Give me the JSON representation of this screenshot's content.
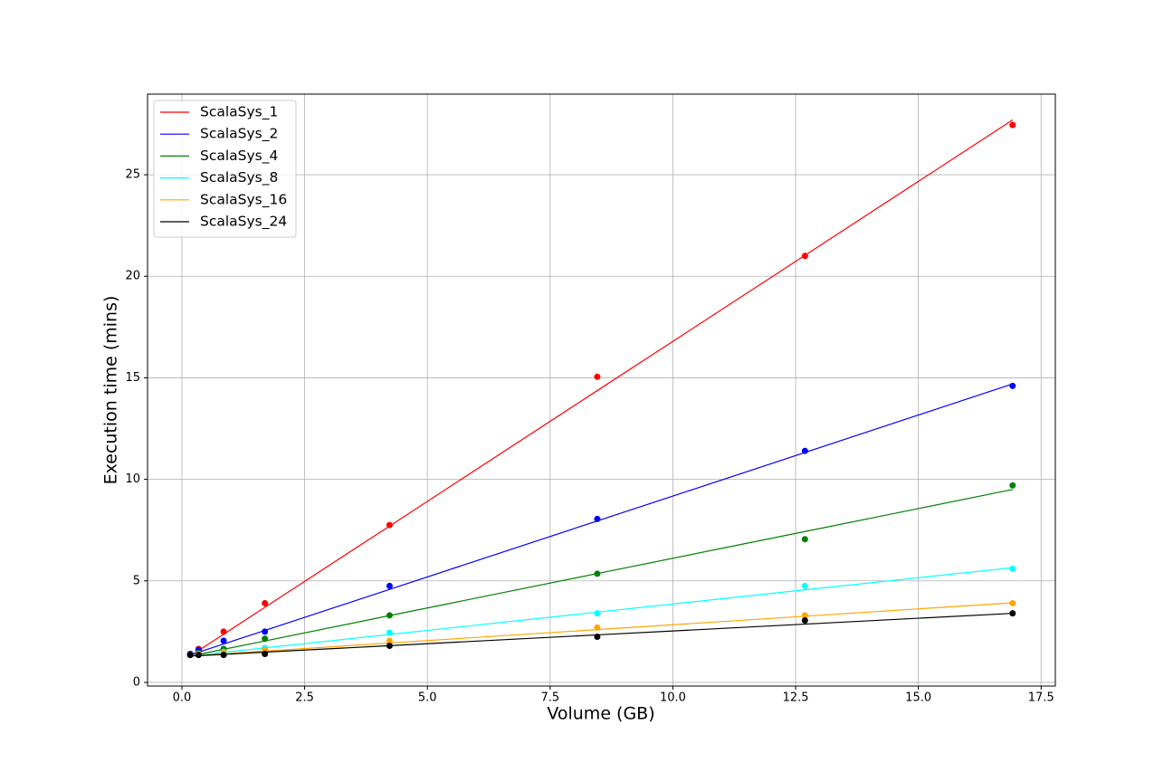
{
  "chart_data": {
    "type": "scatter-fit",
    "xlabel": "Volume (GB)",
    "ylabel": "Execution time (mins)",
    "x": [
      0.17,
      0.34,
      0.85,
      1.69,
      4.23,
      8.46,
      12.69,
      16.92
    ],
    "series": [
      {
        "name": "ScalaSys_1",
        "color": "red",
        "values": [
          1.4,
          1.65,
          2.5,
          3.9,
          7.75,
          15.05,
          21.0,
          27.45
        ],
        "fit": [
          1.3,
          1.57,
          2.37,
          3.7,
          7.7,
          14.37,
          21.03,
          27.7
        ]
      },
      {
        "name": "ScalaSys_2",
        "color": "blue",
        "values": [
          1.4,
          1.6,
          2.05,
          2.5,
          4.75,
          8.05,
          11.4,
          14.6
        ],
        "fit": [
          1.35,
          1.49,
          1.89,
          2.56,
          4.58,
          7.95,
          11.32,
          14.7
        ]
      },
      {
        "name": "ScalaSys_4",
        "color": "green",
        "values": [
          1.35,
          1.45,
          1.65,
          2.15,
          3.3,
          5.35,
          7.05,
          9.7
        ],
        "fit": [
          1.3,
          1.38,
          1.63,
          2.04,
          3.29,
          5.36,
          7.43,
          9.5
        ]
      },
      {
        "name": "ScalaSys_8",
        "color": "cyan",
        "values": [
          1.35,
          1.4,
          1.5,
          1.7,
          2.45,
          3.4,
          4.75,
          5.6
        ],
        "fit": [
          1.3,
          1.34,
          1.48,
          1.7,
          2.36,
          3.46,
          4.56,
          5.65
        ]
      },
      {
        "name": "ScalaSys_16",
        "color": "orange",
        "values": [
          1.35,
          1.4,
          1.45,
          1.6,
          2.05,
          2.7,
          3.3,
          3.9
        ],
        "fit": [
          1.3,
          1.33,
          1.41,
          1.54,
          1.94,
          2.6,
          3.26,
          3.92
        ]
      },
      {
        "name": "ScalaSys_24",
        "color": "black",
        "values": [
          1.35,
          1.35,
          1.35,
          1.4,
          1.8,
          2.25,
          3.05,
          3.4
        ],
        "fit": [
          1.3,
          1.32,
          1.38,
          1.49,
          1.81,
          2.34,
          2.87,
          3.4
        ]
      }
    ],
    "xlim": [
      -0.7,
      17.79
    ],
    "ylim": [
      -0.18,
      28.97
    ],
    "xticks": [
      {
        "value": 0,
        "label": "0.0"
      },
      2.5,
      {
        "value": 5,
        "label": "5.0"
      },
      7.5,
      {
        "value": 10,
        "label": "10.0"
      },
      12.5,
      {
        "value": 15,
        "label": "15.0"
      },
      17.5
    ],
    "yticks": [
      0,
      5,
      10,
      15,
      20,
      25
    ],
    "grid": true,
    "legend": "upper-left"
  }
}
